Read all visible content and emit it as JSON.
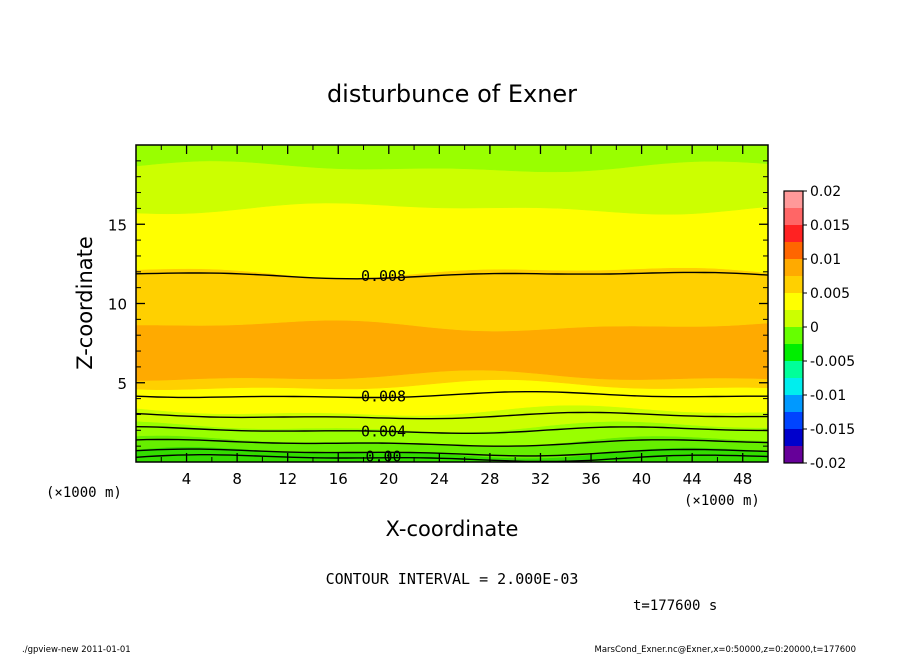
{
  "chart_data": {
    "type": "contour",
    "title": "disturbunce of Exner",
    "xlabel": "X-coordinate",
    "ylabel": "Z-coordinate",
    "x_unit_left": "(×1000 m)",
    "x_unit_right": "(×1000 m)",
    "xlim": [
      0,
      50
    ],
    "ylim": [
      0,
      20
    ],
    "x_ticks": [
      "4",
      "8",
      "12",
      "16",
      "20",
      "24",
      "28",
      "32",
      "36",
      "40",
      "44",
      "48"
    ],
    "y_ticks": [
      "5",
      "10",
      "15"
    ],
    "contour_interval_label": "CONTOUR INTERVAL = 2.000E-03",
    "time_label": "t=177600 s",
    "footer_left": "./gpview-new   2011-01-01",
    "footer_right": "MarsCond_Exner.nc@Exner,x=0:50000,z=0:20000,t=177600",
    "contour_labels": [
      {
        "text": "0.008",
        "x": 18.0,
        "z": 11.8
      },
      {
        "text": "0.008",
        "x": 18.0,
        "z": 4.2
      },
      {
        "text": "0.004",
        "x": 18.0,
        "z": 2.0
      },
      {
        "text": "0.00",
        "x": 18.0,
        "z": 0.4
      }
    ],
    "colorbar": {
      "ticks": [
        "0.02",
        "0.015",
        "0.01",
        "0.005",
        "0",
        "-0.005",
        "-0.01",
        "-0.015",
        "-0.02"
      ],
      "colors": [
        "#ff9999",
        "#ff6666",
        "#ff2222",
        "#ff6600",
        "#ffaa00",
        "#ffd000",
        "#ffff00",
        "#ccff00",
        "#66ff00",
        "#00ee00",
        "#00ff99",
        "#00eeee",
        "#0099ff",
        "#0044ff",
        "#0000cc",
        "#660099"
      ]
    },
    "bands": [
      {
        "zmin": 0.0,
        "zmax": 0.6,
        "color": "#33dd00",
        "value": 0.001
      },
      {
        "zmin": 0.6,
        "zmax": 1.3,
        "color": "#66ee00",
        "value": 0.002
      },
      {
        "zmin": 1.3,
        "zmax": 2.2,
        "color": "#99ff00",
        "value": 0.003
      },
      {
        "zmin": 2.2,
        "zmax": 3.2,
        "color": "#ccff00",
        "value": 0.005
      },
      {
        "zmin": 3.2,
        "zmax": 4.8,
        "color": "#ffff00",
        "value": 0.007
      },
      {
        "zmin": 4.8,
        "zmax": 5.4,
        "color": "#ffd000",
        "value": 0.009
      },
      {
        "zmin": 5.4,
        "zmax": 8.6,
        "color": "#ffaa00",
        "value": 0.011
      },
      {
        "zmin": 8.6,
        "zmax": 12.0,
        "color": "#ffd000",
        "value": 0.009
      },
      {
        "zmin": 12.0,
        "zmax": 16.0,
        "color": "#ffff00",
        "value": 0.007
      },
      {
        "zmin": 16.0,
        "zmax": 18.6,
        "color": "#ccff00",
        "value": 0.005
      },
      {
        "zmin": 18.6,
        "zmax": 20.0,
        "color": "#99ff00",
        "value": 0.003
      }
    ],
    "contour_levels_z": [
      0.25,
      0.6,
      1.2,
      2.0,
      2.9,
      4.2,
      11.8
    ]
  }
}
